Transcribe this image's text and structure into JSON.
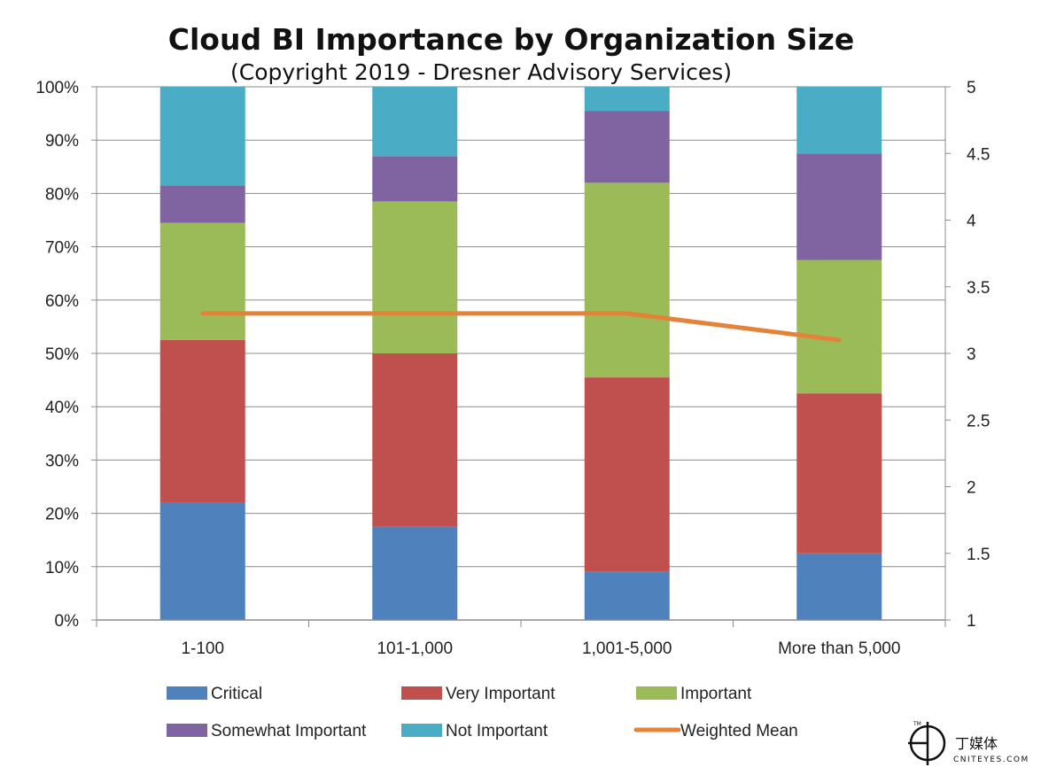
{
  "chart_data": {
    "type": "bar",
    "stacked": true,
    "title": "Cloud BI Importance by Organization Size",
    "subtitle": "(Copyright 2019 - Dresner Advisory Services)",
    "categories": [
      "1-100",
      "101-1,000",
      "1,001-5,000",
      "More than 5,000"
    ],
    "series": [
      {
        "name": "Critical",
        "color": "#4F81BD",
        "values": [
          22,
          17.5,
          9,
          12.5
        ]
      },
      {
        "name": "Very Important",
        "color": "#C0504D",
        "values": [
          30.5,
          32.5,
          36.5,
          30
        ]
      },
      {
        "name": "Important",
        "color": "#9BBB59",
        "values": [
          22,
          28.5,
          36.5,
          25
        ]
      },
      {
        "name": "Somewhat Important",
        "color": "#8064A2",
        "values": [
          7,
          8.5,
          13.5,
          20
        ]
      },
      {
        "name": "Not Important",
        "color": "#4BACC6",
        "values": [
          18.5,
          13,
          4.5,
          12.5
        ]
      }
    ],
    "line_series": {
      "name": "Weighted Mean",
      "color": "#E4823A",
      "axis": "secondary",
      "values": [
        3.3,
        3.3,
        3.3,
        3.1
      ]
    },
    "y_axis": {
      "ylim": [
        0,
        100
      ],
      "ticks": [
        "0%",
        "10%",
        "20%",
        "30%",
        "40%",
        "50%",
        "60%",
        "70%",
        "80%",
        "90%",
        "100%"
      ]
    },
    "y2_axis": {
      "ylim": [
        1,
        5
      ],
      "ticks": [
        "1",
        "1.5",
        "2",
        "2.5",
        "3",
        "3.5",
        "4",
        "4.5",
        "5"
      ]
    },
    "legend": {
      "position": "bottom"
    }
  },
  "watermark": {
    "text": "丁媒体",
    "sub": "CNITEYES.COM",
    "mark": "TM"
  }
}
